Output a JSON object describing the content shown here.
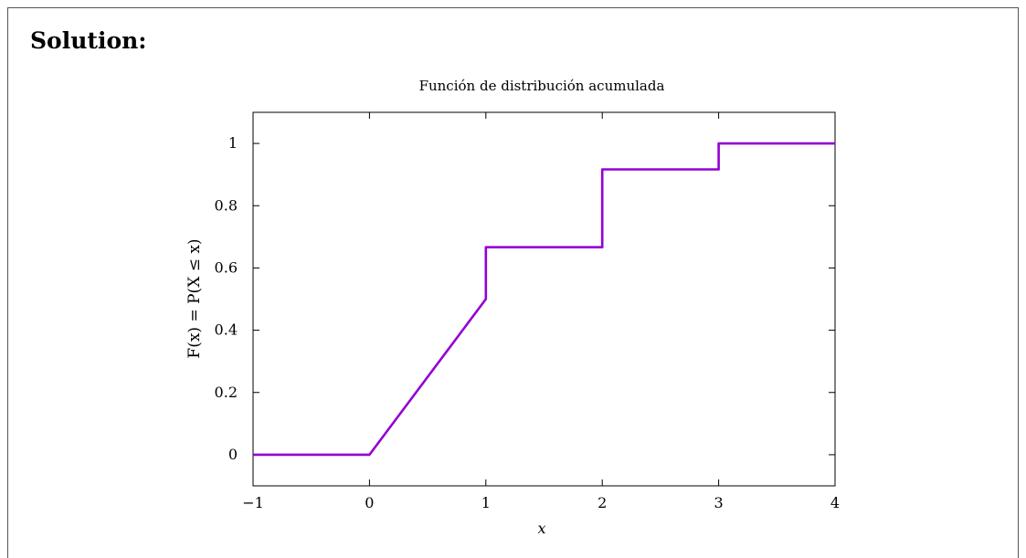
{
  "heading": "Solution:",
  "chart_data": {
    "type": "line",
    "title": "Función de distribución acumulada",
    "xlabel": "x",
    "ylabel": "F(x) = P(X ≤ x)",
    "xlim": [
      -1,
      4
    ],
    "ylim": [
      -0.1,
      1.1
    ],
    "xticks": [
      -1,
      0,
      1,
      2,
      3,
      4
    ],
    "xtick_labels": [
      "−1",
      "0",
      "1",
      "2",
      "3",
      "4"
    ],
    "yticks": [
      0,
      0.2,
      0.4,
      0.6,
      0.8,
      1
    ],
    "ytick_labels": [
      "0",
      "0.2",
      "0.4",
      "0.6",
      "0.8",
      "1"
    ],
    "grid": false,
    "series": [
      {
        "color": "#9400d3",
        "x": [
          -1,
          0,
          1,
          1,
          2,
          2,
          3,
          3,
          4
        ],
        "y": [
          0,
          0,
          0.5,
          0.6667,
          0.6667,
          0.9167,
          0.9167,
          1,
          1
        ]
      }
    ]
  }
}
